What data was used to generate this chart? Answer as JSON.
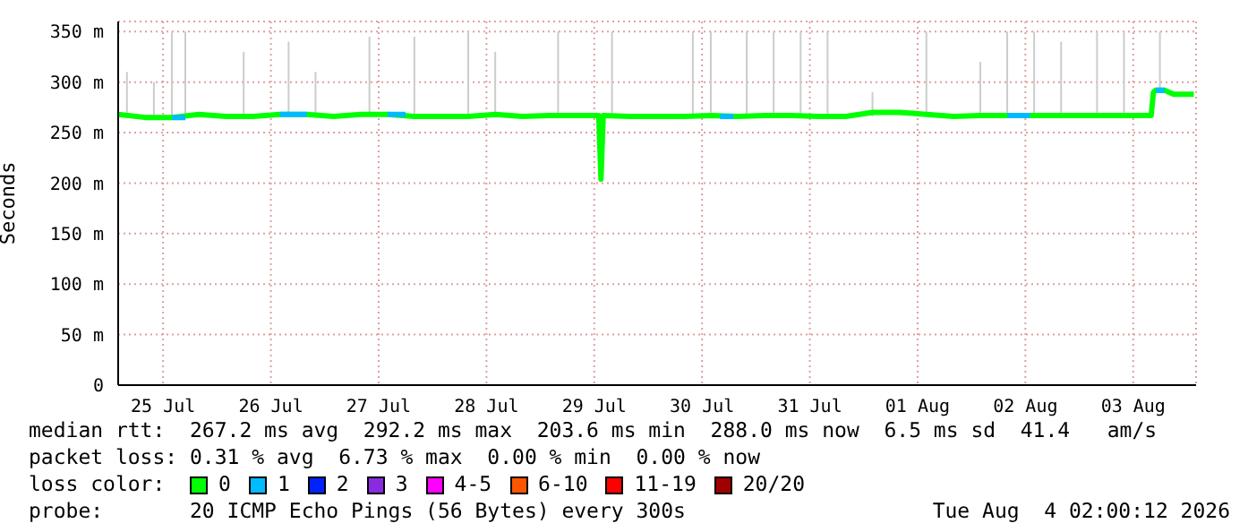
{
  "chart_data": {
    "type": "line",
    "ylabel": "Seconds",
    "legend_title": "loss color:",
    "legend": "bottom",
    "grid": true,
    "marker": "none",
    "line_style": "solid",
    "xlim": [
      "2026-07-25T02:00",
      "2026-08-04T02:00"
    ],
    "xticks": [
      {
        "value": "2026-07-25T12:00",
        "label": "25 Jul"
      },
      {
        "value": "2026-07-26T12:00",
        "label": "26 Jul"
      },
      {
        "value": "2026-07-27T12:00",
        "label": "27 Jul"
      },
      {
        "value": "2026-07-28T12:00",
        "label": "28 Jul"
      },
      {
        "value": "2026-07-29T12:00",
        "label": "29 Jul"
      },
      {
        "value": "2026-07-30T12:00",
        "label": "30 Jul"
      },
      {
        "value": "2026-07-31T12:00",
        "label": "31 Jul"
      },
      {
        "value": "2026-08-01T12:00",
        "label": "01 Aug"
      },
      {
        "value": "2026-08-02T12:00",
        "label": "02 Aug"
      },
      {
        "value": "2026-08-03T12:00",
        "label": "03 Aug"
      }
    ],
    "ylim": [
      0,
      360
    ],
    "yticks": [
      0,
      {
        "value": 50,
        "label": "50 m"
      },
      {
        "value": 100,
        "label": "100 m"
      },
      {
        "value": 150,
        "label": "150 m"
      },
      {
        "value": 200,
        "label": "200 m"
      },
      {
        "value": 250,
        "label": "250 m"
      },
      {
        "value": 300,
        "label": "300 m"
      },
      {
        "value": 350,
        "label": "350 m"
      }
    ],
    "series": [
      {
        "type": "bar",
        "color": "#cccccc",
        "x": [
          "2026-07-25T04:00",
          "2026-07-25T10:00",
          "2026-07-25T14:00",
          "2026-07-25T17:00",
          "2026-07-26T06:00",
          "2026-07-26T16:00",
          "2026-07-26T22:00",
          "2026-07-27T10:00",
          "2026-07-27T20:00",
          "2026-07-28T08:00",
          "2026-07-28T14:00",
          "2026-07-29T04:00",
          "2026-07-29T16:00",
          "2026-07-30T10:00",
          "2026-07-30T14:00",
          "2026-07-30T22:00",
          "2026-07-31T04:00",
          "2026-07-31T10:00",
          "2026-07-31T16:00",
          "2026-08-01T02:00",
          "2026-08-01T14:00",
          "2026-08-02T02:00",
          "2026-08-02T08:00",
          "2026-08-02T14:00",
          "2026-08-02T20:00",
          "2026-08-03T04:00",
          "2026-08-03T10:00",
          "2026-08-03T18:00"
        ],
        "base": [
          266,
          266,
          266,
          266,
          266,
          266,
          266,
          266,
          266,
          266,
          266,
          266,
          266,
          266,
          266,
          266,
          266,
          266,
          266,
          266,
          266,
          266,
          266,
          266,
          266,
          266,
          266,
          292
        ],
        "values": [
          44,
          34,
          84,
          84,
          64,
          74,
          44,
          79,
          79,
          84,
          64,
          84,
          84,
          84,
          84,
          84,
          84,
          84,
          84,
          24,
          84,
          54,
          84,
          84,
          74,
          84,
          84,
          58
        ]
      },
      {
        "name": "0",
        "color": "#00ff00",
        "x": [
          "2026-07-25T02:00",
          "2026-07-25T08:00",
          "2026-07-25T14:00",
          "2026-07-25T20:00",
          "2026-07-26T02:00",
          "2026-07-26T08:00",
          "2026-07-26T14:00",
          "2026-07-26T20:00",
          "2026-07-27T02:00",
          "2026-07-27T08:00",
          "2026-07-27T14:00",
          "2026-07-27T20:00",
          "2026-07-28T02:00",
          "2026-07-28T08:00",
          "2026-07-28T14:00",
          "2026-07-28T20:00",
          "2026-07-29T02:00",
          "2026-07-29T08:00",
          "2026-07-29T13:00",
          "2026-07-29T13:30",
          "2026-07-29T14:00",
          "2026-07-29T20:00",
          "2026-07-30T02:00",
          "2026-07-30T08:00",
          "2026-07-30T14:00",
          "2026-07-30T20:00",
          "2026-07-31T02:00",
          "2026-07-31T08:00",
          "2026-07-31T14:00",
          "2026-07-31T20:00",
          "2026-08-01T02:00",
          "2026-08-01T08:00",
          "2026-08-01T14:00",
          "2026-08-01T20:00",
          "2026-08-02T02:00",
          "2026-08-02T08:00",
          "2026-08-02T14:00",
          "2026-08-02T20:00",
          "2026-08-03T02:00",
          "2026-08-03T08:00",
          "2026-08-03T16:00",
          "2026-08-03T16:30",
          "2026-08-03T17:00",
          "2026-08-03T19:00",
          "2026-08-03T21:00",
          "2026-08-04T01:30"
        ],
        "values": [
          268,
          265,
          265,
          268,
          266,
          266,
          268,
          268,
          266,
          268,
          268,
          266,
          266,
          266,
          268,
          266,
          267,
          267,
          267,
          204,
          267,
          266,
          266,
          266,
          267,
          266,
          267,
          267,
          266,
          266,
          270,
          270,
          268,
          266,
          267,
          267,
          267,
          267,
          267,
          267,
          267,
          290,
          292,
          292,
          288,
          288
        ]
      },
      {
        "name": "1",
        "color": "#00bbff",
        "x": [
          "2026-07-25T14:00",
          "2026-07-25T17:00",
          "2026-07-26T00:00",
          "2026-07-26T14:00",
          "2026-07-26T20:00",
          "2026-07-27T00:00",
          "2026-07-27T14:00",
          "2026-07-27T18:00",
          "2026-07-29T00:00",
          "2026-07-30T16:00",
          "2026-07-30T19:00",
          "2026-08-01T00:00",
          "2026-08-02T08:00",
          "2026-08-02T13:00",
          "2026-08-03T00:00",
          "2026-08-03T17:00",
          "2026-08-03T19:00"
        ],
        "values": [
          265,
          265,
          null,
          268,
          268,
          null,
          268,
          268,
          null,
          266,
          266,
          null,
          267,
          267,
          null,
          292,
          292
        ]
      },
      {
        "name": "2",
        "color": "#0022ff"
      },
      {
        "name": "3",
        "color": "#8a2be2"
      },
      {
        "name": "4-5",
        "color": "#ff00ff"
      },
      {
        "name": "6-10",
        "color": "#ff5500"
      },
      {
        "name": "11-19",
        "color": "#ff0000"
      },
      {
        "name": "20/20",
        "color": "#a10000"
      }
    ],
    "annotations": [
      "median rtt:  267.2 ms avg  292.2 ms max  203.6 ms min  288.0 ms now  6.5 ms sd  41.4   am/s",
      "packet loss: 0.31 % avg  6.73 % max  0.00 % min  0.00 % now",
      "probe:       20 ICMP Echo Pings (56 Bytes) every 300s",
      "Tue Aug  4 02:00:12 2026"
    ]
  }
}
